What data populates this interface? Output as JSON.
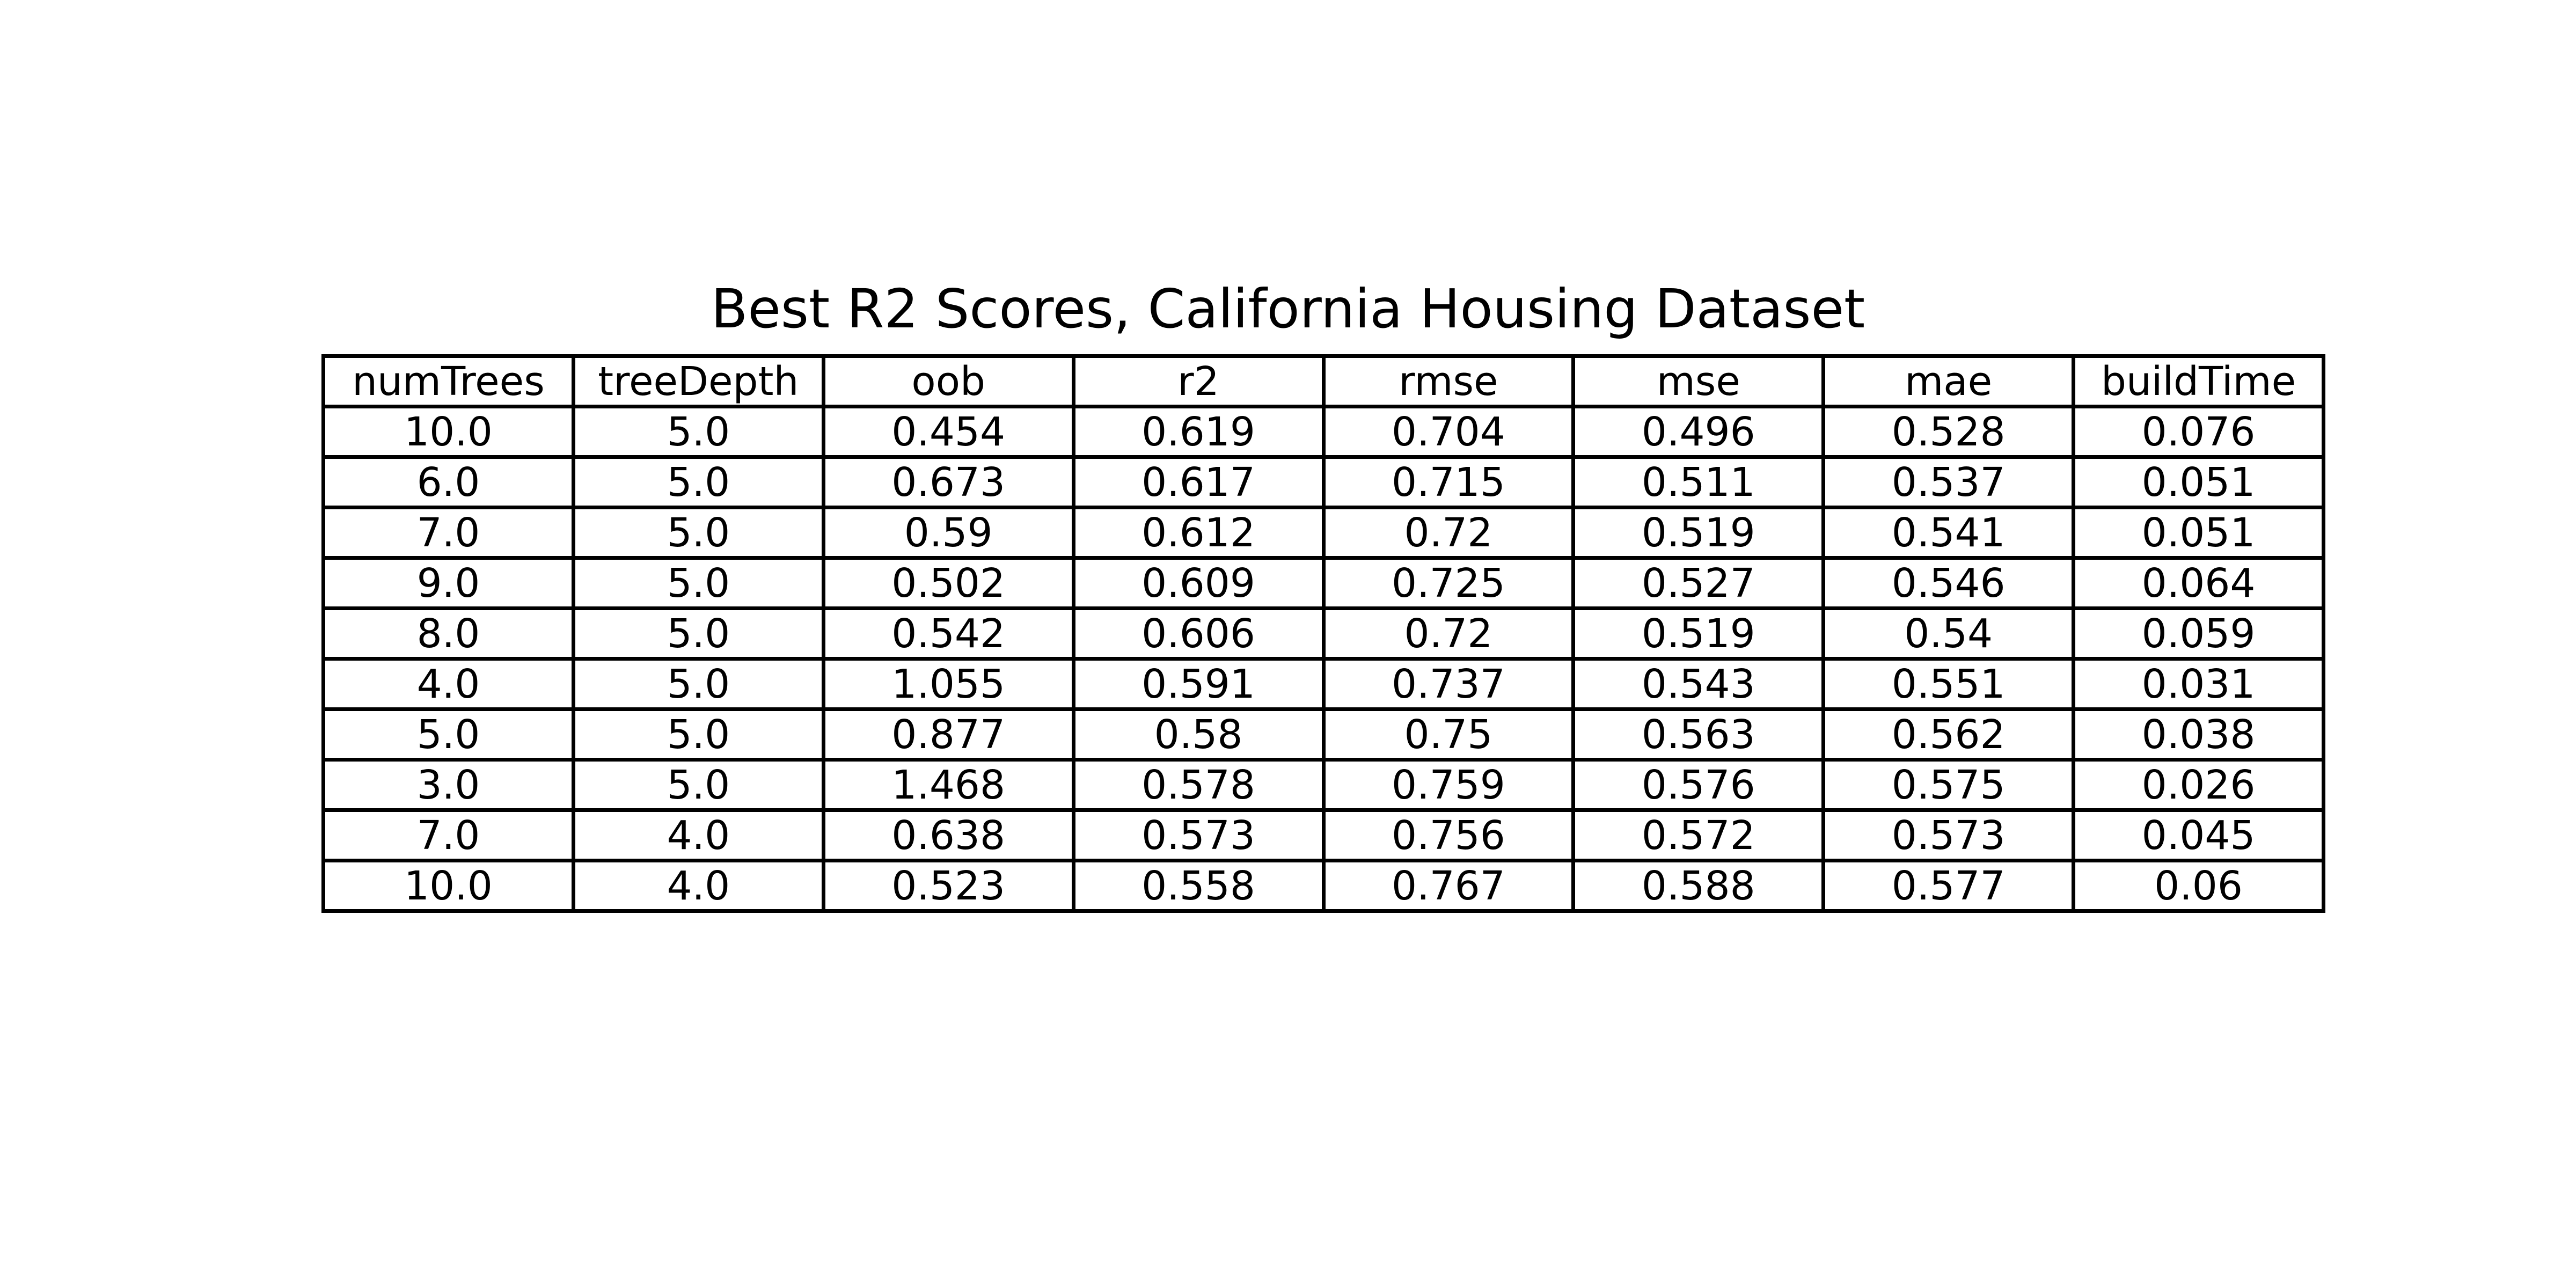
{
  "chart_data": {
    "type": "table",
    "title": "Best R2 Scores, California Housing Dataset",
    "columns": [
      "numTrees",
      "treeDepth",
      "oob",
      "r2",
      "rmse",
      "mse",
      "mae",
      "buildTime"
    ],
    "rows": [
      [
        "10.0",
        "5.0",
        "0.454",
        "0.619",
        "0.704",
        "0.496",
        "0.528",
        "0.076"
      ],
      [
        "6.0",
        "5.0",
        "0.673",
        "0.617",
        "0.715",
        "0.511",
        "0.537",
        "0.051"
      ],
      [
        "7.0",
        "5.0",
        "0.59",
        "0.612",
        "0.72",
        "0.519",
        "0.541",
        "0.051"
      ],
      [
        "9.0",
        "5.0",
        "0.502",
        "0.609",
        "0.725",
        "0.527",
        "0.546",
        "0.064"
      ],
      [
        "8.0",
        "5.0",
        "0.542",
        "0.606",
        "0.72",
        "0.519",
        "0.54",
        "0.059"
      ],
      [
        "4.0",
        "5.0",
        "1.055",
        "0.591",
        "0.737",
        "0.543",
        "0.551",
        "0.031"
      ],
      [
        "5.0",
        "5.0",
        "0.877",
        "0.58",
        "0.75",
        "0.563",
        "0.562",
        "0.038"
      ],
      [
        "3.0",
        "5.0",
        "1.468",
        "0.578",
        "0.759",
        "0.576",
        "0.575",
        "0.026"
      ],
      [
        "7.0",
        "4.0",
        "0.638",
        "0.573",
        "0.756",
        "0.572",
        "0.573",
        "0.045"
      ],
      [
        "10.0",
        "4.0",
        "0.523",
        "0.558",
        "0.767",
        "0.588",
        "0.577",
        "0.06"
      ]
    ]
  }
}
